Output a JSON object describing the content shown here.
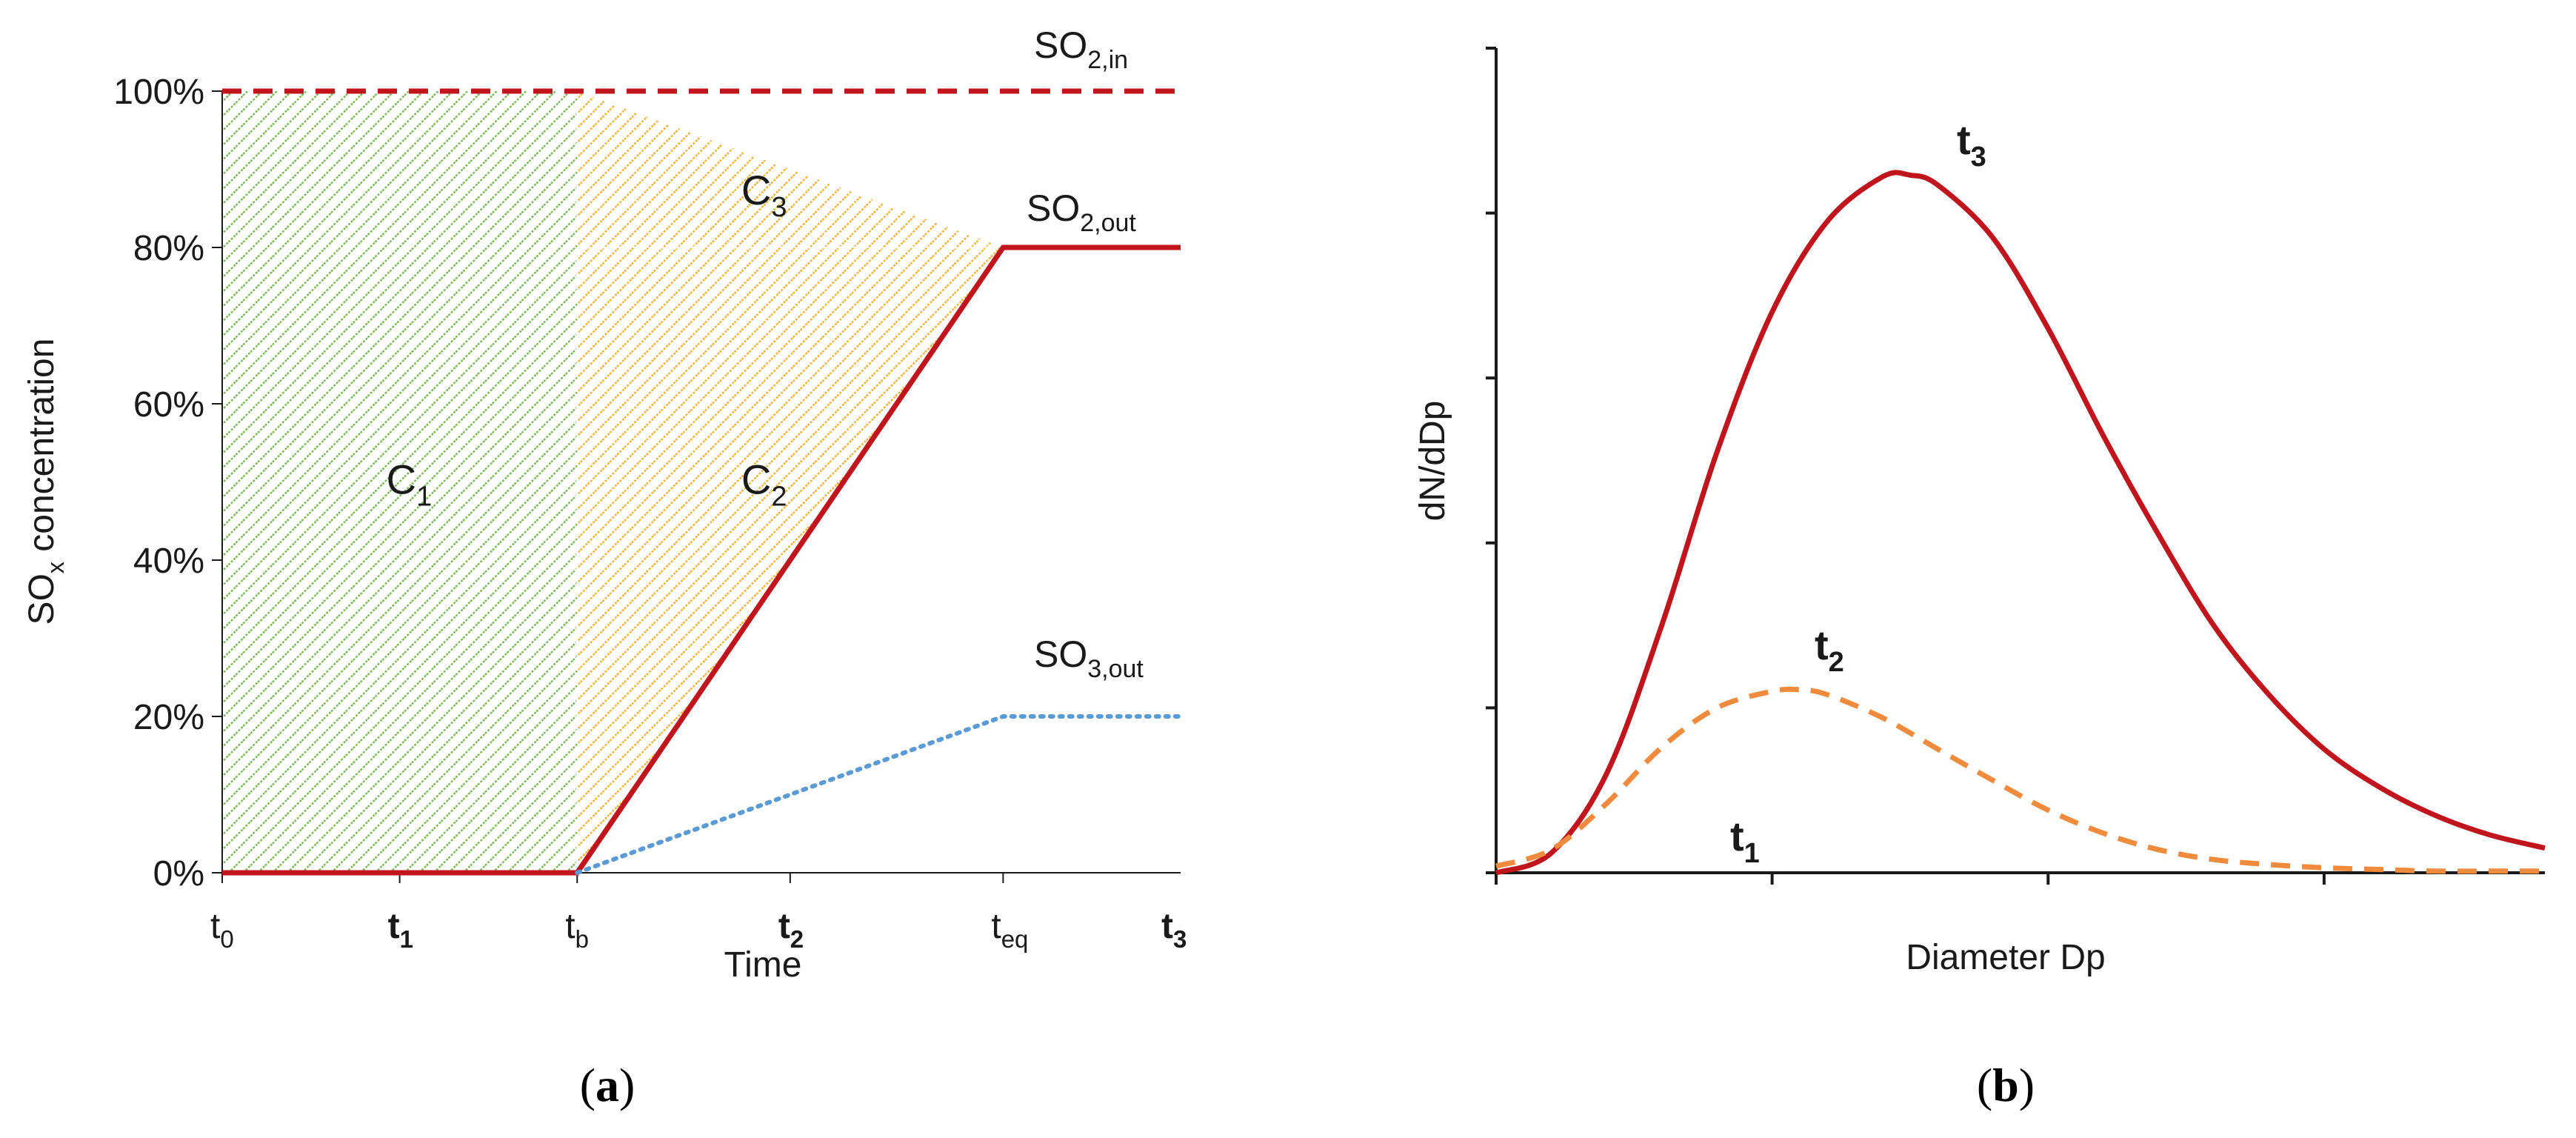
{
  "chart_data": [
    {
      "panel": "a",
      "caption": {
        "open": "(",
        "letter": "a",
        "close": ")"
      },
      "type": "line",
      "xlabel": "Time",
      "ylabel": {
        "main": "SO",
        "sub": "x",
        "rest": " concentration"
      },
      "ylim": [
        0,
        100
      ],
      "yticks": [
        "0%",
        "20%",
        "40%",
        "60%",
        "80%",
        "100%"
      ],
      "xlim": [
        0,
        13.5
      ],
      "xticks": [
        {
          "x": 0,
          "main": "t",
          "sub": "0",
          "color": "#1a1a1a",
          "bold": false
        },
        {
          "x": 2.5,
          "main": "t",
          "sub": "1",
          "color": "#2db34a",
          "bold": true
        },
        {
          "x": 5,
          "main": "t",
          "sub": "b",
          "color": "#1a1a1a",
          "bold": false
        },
        {
          "x": 8,
          "main": "t",
          "sub": "2",
          "color": "#f08a3c",
          "bold": true
        },
        {
          "x": 11,
          "main": "t",
          "sub": "eq",
          "color": "#1a1a1a",
          "bold": false
        },
        {
          "x": 14,
          "main": "t",
          "sub": "3",
          "color": "#c0151c",
          "bold": true
        }
      ],
      "series": [
        {
          "name": "SO2,in",
          "label_main": "SO",
          "label_sub": "2,in",
          "style": "dashed",
          "color": "#c0151c",
          "x": [
            0,
            13.5
          ],
          "y": [
            100,
            100
          ]
        },
        {
          "name": "SO2,out",
          "label_main": "SO",
          "label_sub": "2,out",
          "style": "solid",
          "color": "#c0151c",
          "x": [
            0,
            5,
            8,
            11,
            13.5
          ],
          "y": [
            0,
            0,
            40,
            80,
            80
          ]
        },
        {
          "name": "SO3,out",
          "label_main": "SO",
          "label_sub": "3,out",
          "style": "dotted",
          "color": "#5b9bd5",
          "x": [
            5,
            11,
            13.5
          ],
          "y": [
            0,
            20,
            20
          ]
        }
      ],
      "regions": [
        {
          "name": "C1",
          "main": "C",
          "sub": "1",
          "color": "#7dbb5a",
          "polygon": [
            [
              0,
              0
            ],
            [
              5,
              0
            ],
            [
              5,
              100
            ],
            [
              0,
              100
            ]
          ]
        },
        {
          "name": "C2",
          "main": "C",
          "sub": "2",
          "color": "#f0b43c",
          "polygon": [
            [
              5,
              0
            ],
            [
              11,
              80
            ],
            [
              5,
              80
            ]
          ]
        },
        {
          "name": "C3",
          "main": "C",
          "sub": "3",
          "color": "#f0b43c",
          "polygon": [
            [
              5,
              80
            ],
            [
              11,
              80
            ],
            [
              5,
              100
            ]
          ]
        }
      ]
    },
    {
      "panel": "b",
      "caption": {
        "open": "(",
        "letter": "b",
        "close": ")"
      },
      "type": "line",
      "xlabel": "Diameter Dp",
      "ylabel": "dN/dDp",
      "xlim": [
        0,
        3.8
      ],
      "ylim": [
        0,
        5
      ],
      "series": [
        {
          "name": "t3",
          "label_main": "t",
          "label_sub": "3",
          "style": "solid",
          "color": "#c0151c",
          "x": [
            0,
            0.2,
            0.4,
            0.6,
            0.8,
            1.0,
            1.2,
            1.4,
            1.5,
            1.6,
            1.8,
            2.0,
            2.2,
            2.4,
            2.6,
            2.8,
            3.0,
            3.2,
            3.4,
            3.6,
            3.8
          ],
          "y": [
            0,
            0.12,
            0.6,
            1.5,
            2.55,
            3.4,
            3.95,
            4.22,
            4.23,
            4.17,
            3.85,
            3.3,
            2.65,
            2.05,
            1.5,
            1.08,
            0.75,
            0.52,
            0.35,
            0.23,
            0.15
          ]
        },
        {
          "name": "t2",
          "label_main": "t",
          "label_sub": "2",
          "style": "dashed",
          "color": "#f08a3c",
          "x": [
            0,
            0.2,
            0.4,
            0.6,
            0.8,
            1.0,
            1.1,
            1.2,
            1.4,
            1.6,
            1.8,
            2.0,
            2.2,
            2.4,
            2.6,
            2.8,
            3.0,
            3.2,
            3.4,
            3.6,
            3.8
          ],
          "y": [
            0.04,
            0.14,
            0.42,
            0.76,
            1.0,
            1.1,
            1.11,
            1.08,
            0.94,
            0.75,
            0.56,
            0.38,
            0.24,
            0.14,
            0.08,
            0.05,
            0.03,
            0.02,
            0.01,
            0.01,
            0.01
          ]
        },
        {
          "name": "t1",
          "label_main": "t",
          "label_sub": "1",
          "style": "none",
          "color": "#4a7a2a",
          "x": [],
          "y": []
        }
      ]
    }
  ]
}
